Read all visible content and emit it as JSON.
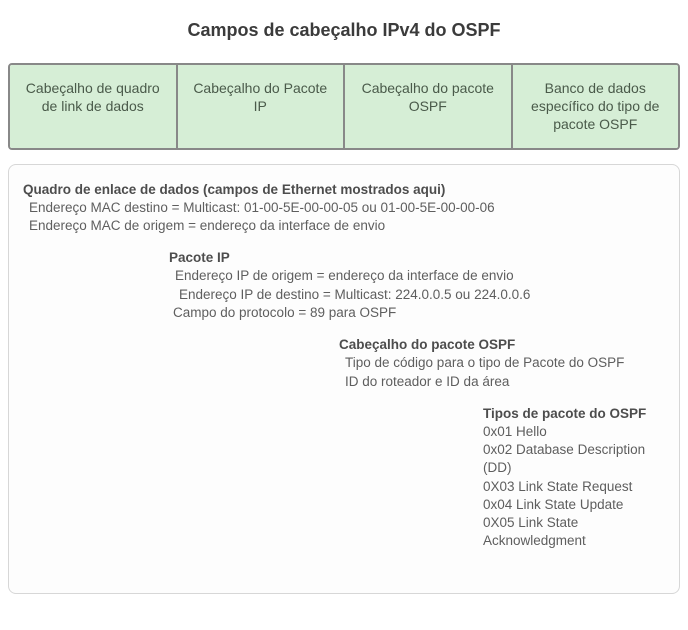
{
  "title": "Campos de cabeçalho IPv4 do OSPF",
  "colors": {
    "header_bg": "#d6eed6",
    "header_border": "#888888",
    "panel_border": "#d7d7d7",
    "text": "#525252",
    "title_text": "#3b3b3b"
  },
  "header_cells": [
    "Cabeçalho de quadro de link de dados",
    "Cabeçalho do Pacote IP",
    "Cabeçalho do pacote OSPF",
    "Banco de dados específico do tipo de pacote OSPF"
  ],
  "sections": {
    "frame": {
      "title": "Quadro de enlace de dados (campos de Ethernet mostrados aqui)",
      "lines": [
        "Endereço MAC destino = Multicast: 01-00-5E-00-00-05 ou 01-00-5E-00-00-06",
        "Endereço MAC de origem = endereço da interface de envio"
      ]
    },
    "ip": {
      "title": "Pacote IP",
      "lines": [
        "Endereço IP de origem = endereço da interface de envio",
        "Endereço IP de destino = Multicast: 224.0.0.5 ou 224.0.0.6",
        "Campo do protocolo = 89 para OSPF"
      ]
    },
    "ospfHeader": {
      "title": "Cabeçalho do pacote OSPF",
      "lines": [
        "Tipo de código para o tipo de Pacote do OSPF",
        "ID do roteador e ID da área"
      ]
    },
    "ospfTypes": {
      "title": "Tipos de pacote do OSPF",
      "lines": [
        "0x01 Hello",
        "0x02 Database Description (DD)",
        "0X03 Link State Request",
        "0x04 Link State Update",
        "0X05 Link State Acknowledgment"
      ]
    }
  }
}
